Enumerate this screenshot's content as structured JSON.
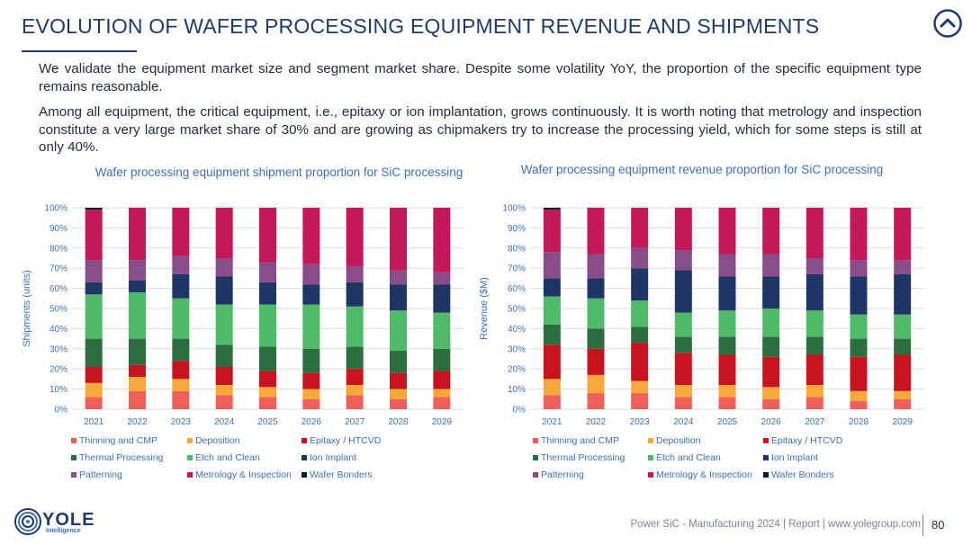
{
  "page": {
    "title": "EVOLUTION OF WAFER PROCESSING EQUIPMENT REVENUE AND SHIPMENTS",
    "paragraph1": "We validate the equipment market size and segment market share. Despite some volatility YoY, the proportion of the specific equipment type remains reasonable.",
    "paragraph2": "Among all equipment, the critical equipment, i.e., epitaxy or ion implantation, grows continuously. It is worth noting that metrology and inspection constitute a very large market share of 30% and are growing as chipmakers try to increase the processing yield, which for some steps is still at only 40%.",
    "top_icon": "chevron-up-circle-icon"
  },
  "footer": {
    "text": "Power SiC - Manufacturing 2024 | Report | www.yolegroup.com",
    "page_number": "80",
    "logo_text": "YOLE",
    "logo_sub": "Intelligence"
  },
  "colors": {
    "Thinning and CMP": "#f0605a",
    "Deposition": "#f7a83a",
    "Epitaxy / HTCVD": "#c8141e",
    "Thermal Processing": "#2c6e3d",
    "Etch and Clean": "#4fba6a",
    "Ion Implant": "#1f3566",
    "Patterning": "#8a4b8a",
    "Metrology & Inspection": "#c41858",
    "Wafer Bonders": "#0f1a33"
  },
  "chart_data": [
    {
      "type": "bar",
      "stacked": true,
      "title": "Wafer processing equipment shipment proportion for SiC processing",
      "ylabel": "Shipments (units)",
      "xlabel": "",
      "ylim": [
        0,
        100
      ],
      "yticks": [
        "0%",
        "10%",
        "20%",
        "30%",
        "40%",
        "50%",
        "60%",
        "70%",
        "80%",
        "90%",
        "100%"
      ],
      "categories": [
        "2021",
        "2022",
        "2023",
        "2024",
        "2025",
        "2026",
        "2027",
        "2028",
        "2029"
      ],
      "series": [
        {
          "name": "Thinning and CMP",
          "values": [
            6,
            9,
            9,
            7,
            6,
            5,
            7,
            5,
            6
          ]
        },
        {
          "name": "Deposition",
          "values": [
            7,
            7,
            6,
            5,
            5,
            5,
            5,
            5,
            4
          ]
        },
        {
          "name": "Epitaxy / HTCVD",
          "values": [
            8,
            6,
            9,
            9,
            8,
            8,
            8,
            8,
            9
          ]
        },
        {
          "name": "Thermal Processing",
          "values": [
            14,
            13,
            11,
            11,
            12,
            12,
            11,
            11,
            11
          ]
        },
        {
          "name": "Etch and Clean",
          "values": [
            22,
            23,
            20,
            20,
            21,
            22,
            20,
            20,
            18
          ]
        },
        {
          "name": "Ion Implant",
          "values": [
            6,
            6,
            12,
            14,
            11,
            10,
            12,
            13,
            14
          ]
        },
        {
          "name": "Patterning",
          "values": [
            11,
            10,
            9,
            9,
            10,
            10,
            8,
            7,
            6
          ]
        },
        {
          "name": "Metrology & Inspection",
          "values": [
            25,
            26,
            24,
            25,
            27,
            28,
            29,
            31,
            32
          ]
        },
        {
          "name": "Wafer Bonders",
          "values": [
            1,
            0,
            0,
            0,
            0,
            0,
            0,
            0,
            0
          ]
        }
      ],
      "legend": "bottom"
    },
    {
      "type": "bar",
      "stacked": true,
      "title": "Wafer processing equipment revenue proportion for SiC processing",
      "ylabel": "Revenue ($M)",
      "xlabel": "",
      "ylim": [
        0,
        100
      ],
      "yticks": [
        "0%",
        "10%",
        "20%",
        "30%",
        "40%",
        "50%",
        "60%",
        "70%",
        "80%",
        "90%",
        "100%"
      ],
      "categories": [
        "2021",
        "2022",
        "2023",
        "2024",
        "2025",
        "2026",
        "2027",
        "2028",
        "2029"
      ],
      "series": [
        {
          "name": "Thinning and CMP",
          "values": [
            7,
            8,
            8,
            6,
            6,
            5,
            6,
            4,
            5
          ]
        },
        {
          "name": "Deposition",
          "values": [
            8,
            9,
            6,
            6,
            6,
            6,
            6,
            5,
            4
          ]
        },
        {
          "name": "Epitaxy / HTCVD",
          "values": [
            17,
            13,
            19,
            16,
            15,
            15,
            15,
            17,
            18
          ]
        },
        {
          "name": "Thermal Processing",
          "values": [
            10,
            10,
            8,
            8,
            9,
            10,
            9,
            9,
            8
          ]
        },
        {
          "name": "Etch and Clean",
          "values": [
            14,
            15,
            13,
            12,
            13,
            14,
            13,
            12,
            12
          ]
        },
        {
          "name": "Ion Implant",
          "values": [
            9,
            10,
            16,
            21,
            17,
            16,
            18,
            19,
            20
          ]
        },
        {
          "name": "Patterning",
          "values": [
            13,
            12,
            10,
            10,
            11,
            11,
            8,
            8,
            7
          ]
        },
        {
          "name": "Metrology & Inspection",
          "values": [
            21,
            23,
            20,
            21,
            23,
            23,
            25,
            26,
            26
          ]
        },
        {
          "name": "Wafer Bonders",
          "values": [
            1,
            0,
            0,
            0,
            0,
            0,
            0,
            0,
            0
          ]
        }
      ],
      "legend": "bottom"
    }
  ]
}
